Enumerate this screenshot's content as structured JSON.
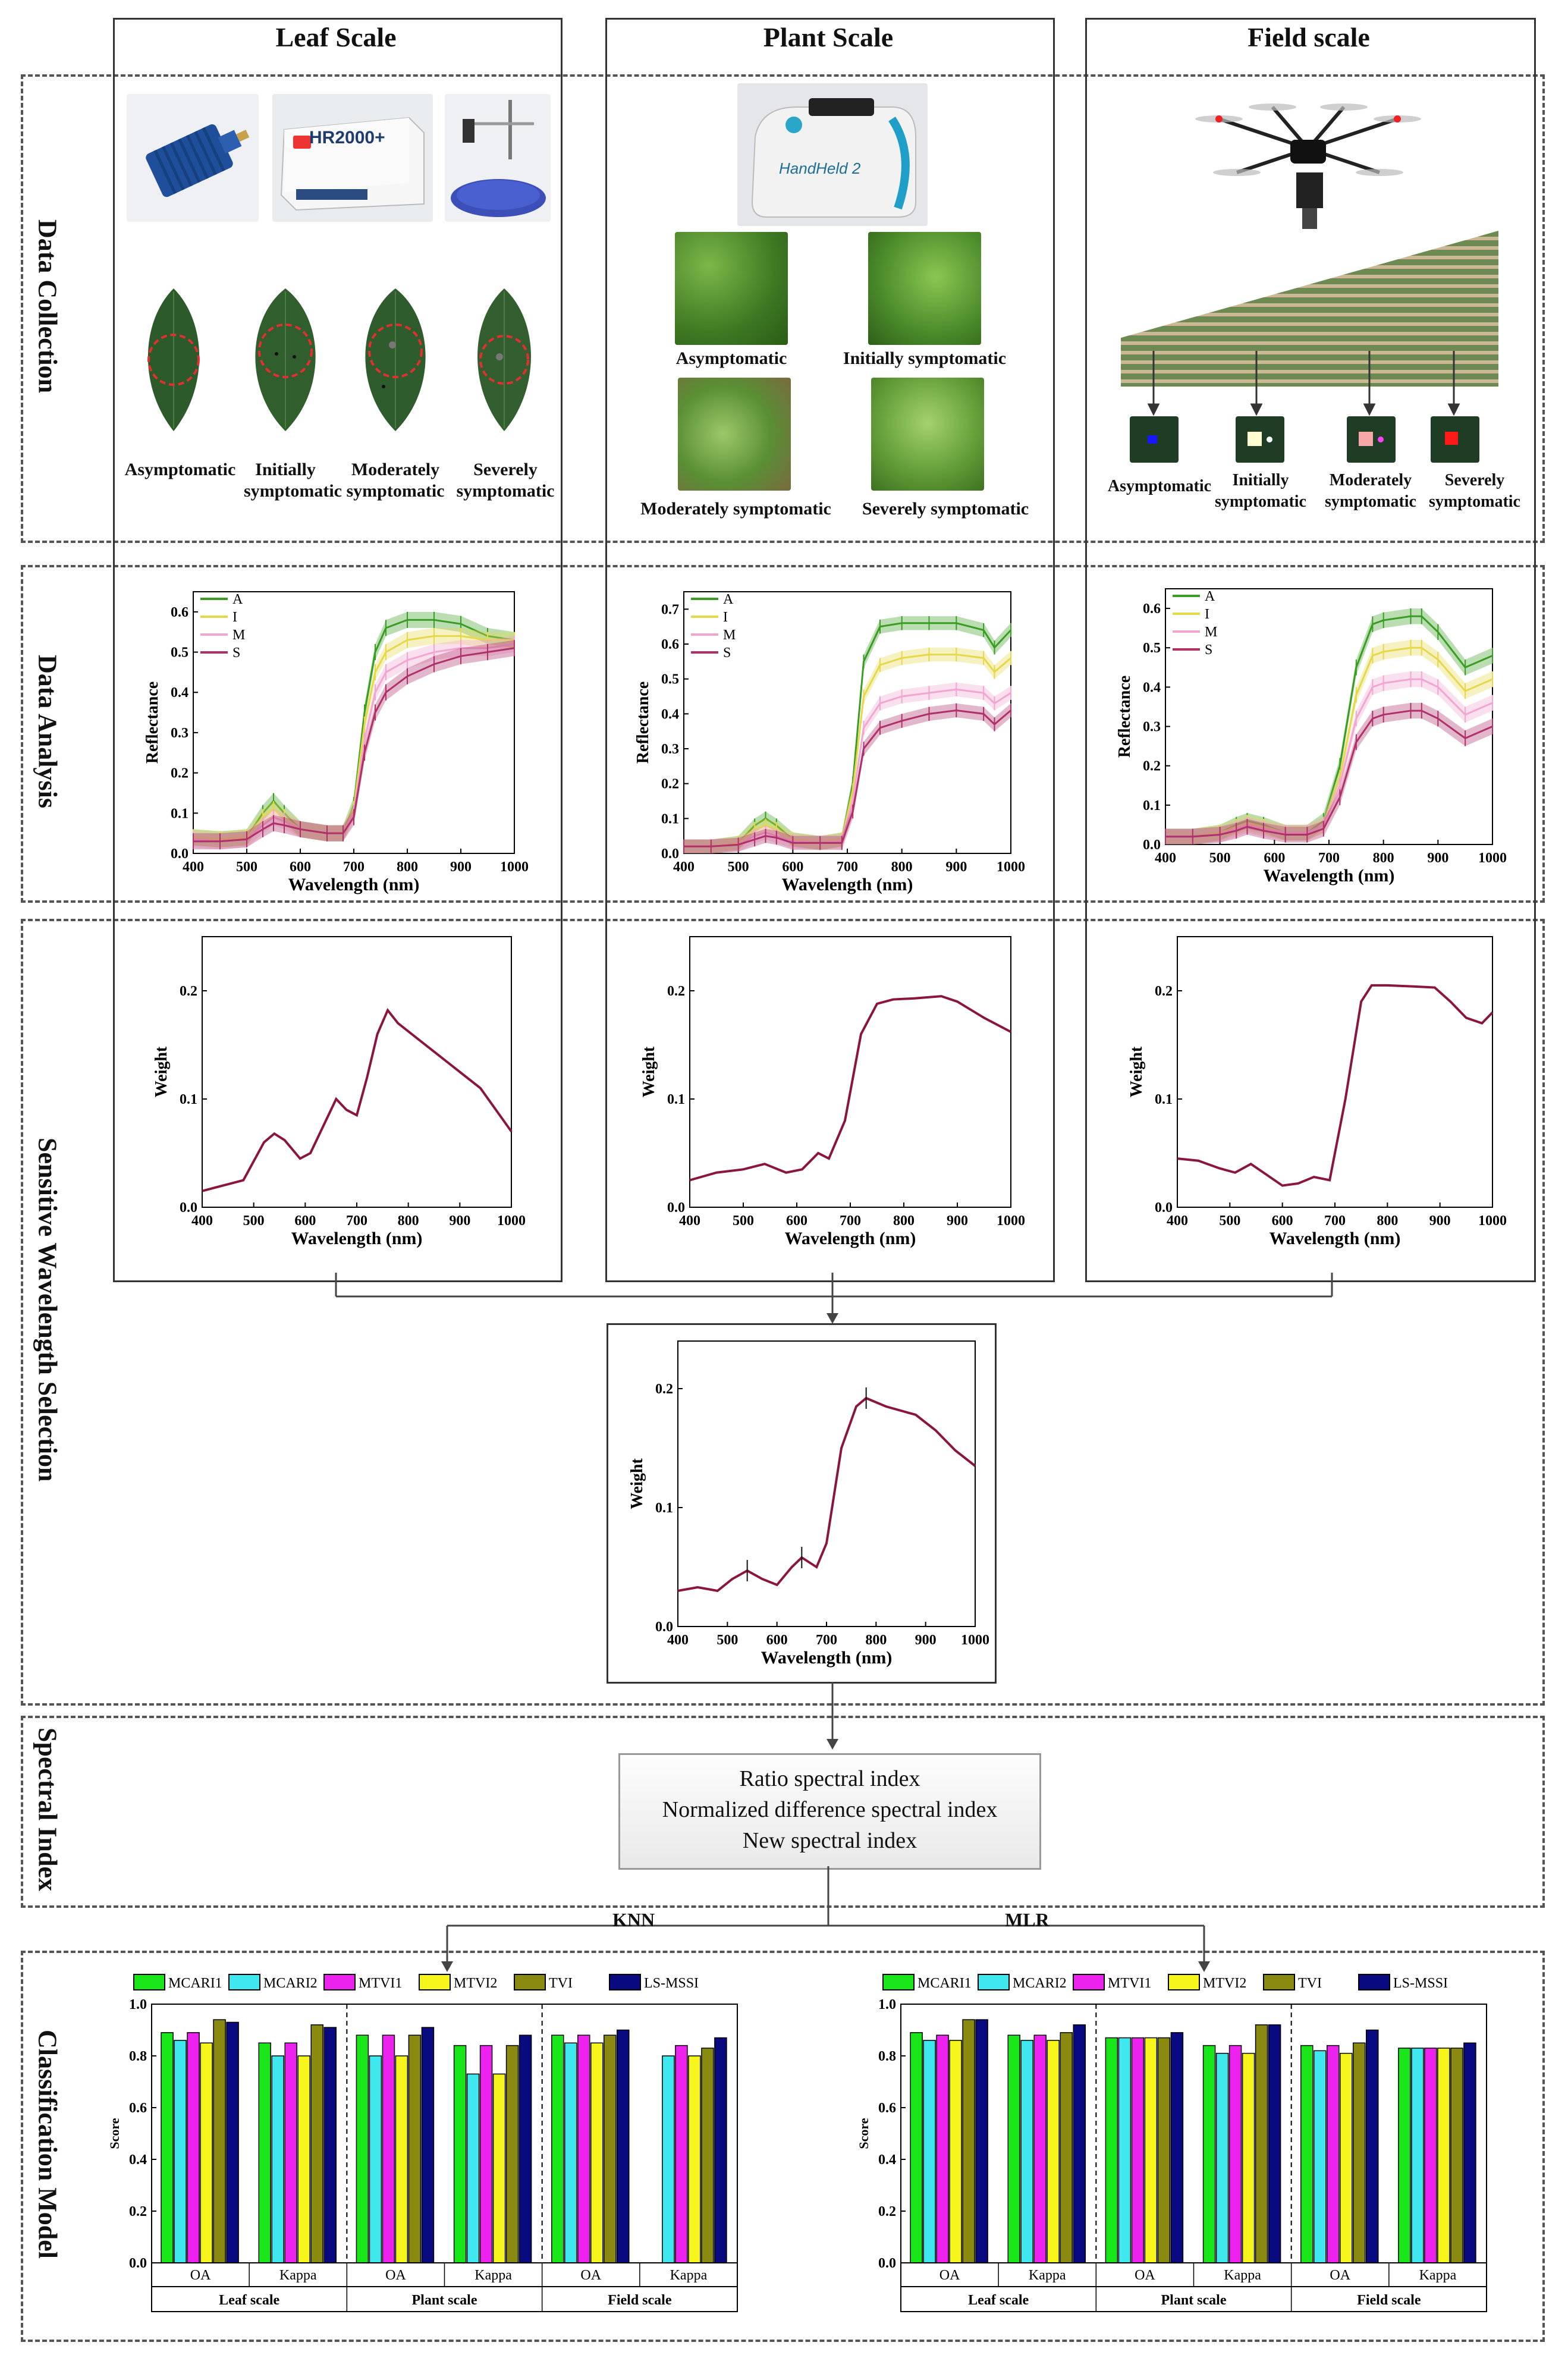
{
  "columns": {
    "leaf": "Leaf Scale",
    "plant": "Plant Scale",
    "field": "Field scale"
  },
  "stages": {
    "data_collection": "Data Collection",
    "data_analysis": "Data Analysis",
    "sensitive_wavelength": "Sensitive Wavelength Selection",
    "spectral_index": "Spectral Index",
    "classification_model": "Classification Model"
  },
  "device_labels": {
    "hr2000": "HR2000+",
    "handheld": "HandHeld 2"
  },
  "leaf_captions": [
    "Asymptomatic",
    "Initially symptomatic",
    "Moderately symptomatic",
    "Severely symptomatic"
  ],
  "plant_captions": [
    "Asymptomatic",
    "Initially symptomatic",
    "Moderately symptomatic",
    "Severely symptomatic"
  ],
  "field_captions": [
    "Asymptomatic",
    "Initially symptomatic",
    "Moderately symptomatic",
    "Severely symptomatic"
  ],
  "reflectance_charts": [
    {
      "type": "line",
      "scale": "Leaf",
      "xlabel": "Wavelength (nm)",
      "ylabel": "Reflectance",
      "xlim": [
        400,
        1000
      ],
      "ylim": [
        0,
        0.65
      ],
      "xticks": [
        "400",
        "500",
        "600",
        "700",
        "800",
        "900",
        "1000"
      ],
      "yticks": [
        "0.0",
        "0.1",
        "0.2",
        "0.3",
        "0.4",
        "0.5",
        "0.6"
      ],
      "legend": [
        "A",
        "I",
        "M",
        "S"
      ],
      "series": [
        {
          "name": "A",
          "color": "#3a9d23",
          "x": [
            400,
            450,
            500,
            530,
            550,
            570,
            600,
            650,
            680,
            700,
            720,
            740,
            760,
            800,
            850,
            900,
            950,
            1000
          ],
          "y": [
            0.04,
            0.035,
            0.04,
            0.1,
            0.13,
            0.1,
            0.06,
            0.05,
            0.05,
            0.12,
            0.35,
            0.5,
            0.56,
            0.58,
            0.58,
            0.57,
            0.54,
            0.53
          ]
        },
        {
          "name": "I",
          "color": "#e5d84a",
          "x": [
            400,
            450,
            500,
            530,
            550,
            570,
            600,
            650,
            680,
            700,
            720,
            740,
            760,
            800,
            850,
            900,
            950,
            1000
          ],
          "y": [
            0.04,
            0.035,
            0.04,
            0.09,
            0.11,
            0.09,
            0.06,
            0.05,
            0.05,
            0.11,
            0.32,
            0.45,
            0.5,
            0.53,
            0.54,
            0.54,
            0.53,
            0.53
          ]
        },
        {
          "name": "M",
          "color": "#f2a6cf",
          "x": [
            400,
            450,
            500,
            530,
            550,
            570,
            600,
            650,
            680,
            700,
            720,
            740,
            760,
            800,
            850,
            900,
            950,
            1000
          ],
          "y": [
            0.035,
            0.03,
            0.035,
            0.07,
            0.09,
            0.08,
            0.06,
            0.05,
            0.05,
            0.1,
            0.28,
            0.4,
            0.45,
            0.48,
            0.5,
            0.51,
            0.51,
            0.52
          ]
        },
        {
          "name": "S",
          "color": "#b0306a",
          "x": [
            400,
            450,
            500,
            530,
            550,
            570,
            600,
            650,
            680,
            700,
            720,
            740,
            760,
            800,
            850,
            900,
            950,
            1000
          ],
          "y": [
            0.03,
            0.03,
            0.035,
            0.06,
            0.075,
            0.07,
            0.06,
            0.05,
            0.05,
            0.09,
            0.25,
            0.35,
            0.4,
            0.44,
            0.47,
            0.49,
            0.5,
            0.51
          ]
        }
      ]
    },
    {
      "type": "line",
      "scale": "Plant",
      "xlabel": "Wavelength (nm)",
      "ylabel": "Reflectance",
      "xlim": [
        400,
        1000
      ],
      "ylim": [
        0,
        0.75
      ],
      "xticks": [
        "400",
        "500",
        "600",
        "700",
        "800",
        "900",
        "1000"
      ],
      "yticks": [
        "0.0",
        "0.1",
        "0.2",
        "0.3",
        "0.4",
        "0.5",
        "0.6",
        "0.7"
      ],
      "legend": [
        "A",
        "I",
        "M",
        "S"
      ],
      "series": [
        {
          "name": "A",
          "color": "#3a9d23",
          "x": [
            400,
            450,
            500,
            530,
            550,
            570,
            600,
            650,
            690,
            710,
            730,
            760,
            800,
            850,
            900,
            950,
            970,
            1000
          ],
          "y": [
            0.02,
            0.02,
            0.03,
            0.08,
            0.1,
            0.08,
            0.04,
            0.03,
            0.04,
            0.2,
            0.55,
            0.65,
            0.66,
            0.66,
            0.66,
            0.64,
            0.59,
            0.64
          ]
        },
        {
          "name": "I",
          "color": "#e5d84a",
          "x": [
            400,
            450,
            500,
            530,
            550,
            570,
            600,
            650,
            690,
            710,
            730,
            760,
            800,
            850,
            900,
            950,
            970,
            1000
          ],
          "y": [
            0.02,
            0.02,
            0.03,
            0.07,
            0.08,
            0.07,
            0.04,
            0.03,
            0.04,
            0.18,
            0.45,
            0.54,
            0.56,
            0.57,
            0.57,
            0.56,
            0.52,
            0.56
          ]
        },
        {
          "name": "M",
          "color": "#f2a6cf",
          "x": [
            400,
            450,
            500,
            530,
            550,
            570,
            600,
            650,
            690,
            710,
            730,
            760,
            800,
            850,
            900,
            950,
            970,
            1000
          ],
          "y": [
            0.02,
            0.02,
            0.025,
            0.05,
            0.06,
            0.05,
            0.035,
            0.03,
            0.035,
            0.15,
            0.36,
            0.43,
            0.45,
            0.46,
            0.47,
            0.46,
            0.43,
            0.46
          ]
        },
        {
          "name": "S",
          "color": "#b0306a",
          "x": [
            400,
            450,
            500,
            530,
            550,
            570,
            600,
            650,
            690,
            710,
            730,
            760,
            800,
            850,
            900,
            950,
            970,
            1000
          ],
          "y": [
            0.02,
            0.02,
            0.025,
            0.04,
            0.05,
            0.045,
            0.03,
            0.03,
            0.03,
            0.12,
            0.3,
            0.36,
            0.38,
            0.4,
            0.41,
            0.4,
            0.37,
            0.41
          ]
        }
      ]
    },
    {
      "type": "line",
      "scale": "Field",
      "xlabel": "Wavelength (nm)",
      "ylabel": "Reflectance",
      "xlim": [
        400,
        1000
      ],
      "ylim": [
        0,
        0.65
      ],
      "xticks": [
        "400",
        "500",
        "600",
        "700",
        "800",
        "900",
        "1000"
      ],
      "yticks": [
        "0.0",
        "0.1",
        "0.2",
        "0.3",
        "0.4",
        "0.5",
        "0.6"
      ],
      "legend": [
        "A",
        "I",
        "M",
        "S"
      ],
      "series": [
        {
          "name": "A",
          "color": "#3a9d23",
          "x": [
            400,
            450,
            500,
            530,
            550,
            580,
            620,
            660,
            690,
            720,
            750,
            780,
            800,
            850,
            870,
            900,
            950,
            1000
          ],
          "y": [
            0.02,
            0.02,
            0.03,
            0.05,
            0.06,
            0.05,
            0.03,
            0.03,
            0.06,
            0.2,
            0.45,
            0.56,
            0.57,
            0.58,
            0.58,
            0.54,
            0.45,
            0.48
          ]
        },
        {
          "name": "I",
          "color": "#e5d84a",
          "x": [
            400,
            450,
            500,
            530,
            550,
            580,
            620,
            660,
            690,
            720,
            750,
            780,
            800,
            850,
            870,
            900,
            950,
            1000
          ],
          "y": [
            0.02,
            0.02,
            0.03,
            0.045,
            0.055,
            0.045,
            0.03,
            0.03,
            0.05,
            0.17,
            0.38,
            0.48,
            0.49,
            0.5,
            0.5,
            0.47,
            0.39,
            0.42
          ]
        },
        {
          "name": "M",
          "color": "#f2a6cf",
          "x": [
            400,
            450,
            500,
            530,
            550,
            580,
            620,
            660,
            690,
            720,
            750,
            780,
            800,
            850,
            870,
            900,
            950,
            1000
          ],
          "y": [
            0.02,
            0.02,
            0.025,
            0.04,
            0.05,
            0.04,
            0.03,
            0.03,
            0.05,
            0.15,
            0.32,
            0.4,
            0.41,
            0.42,
            0.42,
            0.4,
            0.33,
            0.36
          ]
        },
        {
          "name": "S",
          "color": "#b0306a",
          "x": [
            400,
            450,
            500,
            530,
            550,
            580,
            620,
            660,
            690,
            720,
            750,
            780,
            800,
            850,
            870,
            900,
            950,
            1000
          ],
          "y": [
            0.02,
            0.02,
            0.025,
            0.035,
            0.045,
            0.035,
            0.025,
            0.025,
            0.04,
            0.12,
            0.26,
            0.32,
            0.33,
            0.34,
            0.34,
            0.32,
            0.27,
            0.3
          ]
        }
      ]
    }
  ],
  "weight_charts": [
    {
      "type": "line",
      "scale": "Leaf",
      "xlabel": "Wavelength (nm)",
      "ylabel": "Weight",
      "xlim": [
        400,
        1000
      ],
      "ylim": [
        0,
        0.25
      ],
      "xticks": [
        "400",
        "500",
        "600",
        "700",
        "800",
        "900",
        "1000"
      ],
      "yticks": [
        "0.0",
        "0.1",
        "0.2"
      ],
      "x": [
        400,
        440,
        480,
        520,
        540,
        560,
        590,
        610,
        640,
        660,
        680,
        700,
        720,
        740,
        760,
        780,
        820,
        860,
        900,
        940,
        1000
      ],
      "y": [
        0.015,
        0.02,
        0.025,
        0.06,
        0.068,
        0.062,
        0.045,
        0.05,
        0.08,
        0.1,
        0.09,
        0.085,
        0.12,
        0.16,
        0.182,
        0.17,
        0.155,
        0.14,
        0.125,
        0.11,
        0.07
      ]
    },
    {
      "type": "line",
      "scale": "Plant",
      "xlabel": "Wavelength (nm)",
      "ylabel": "Weight",
      "xlim": [
        400,
        1000
      ],
      "ylim": [
        0,
        0.25
      ],
      "xticks": [
        "400",
        "500",
        "600",
        "700",
        "800",
        "900",
        "1000"
      ],
      "yticks": [
        "0.0",
        "0.1",
        "0.2"
      ],
      "x": [
        400,
        450,
        500,
        540,
        580,
        610,
        640,
        660,
        690,
        720,
        750,
        780,
        820,
        870,
        900,
        950,
        1000
      ],
      "y": [
        0.025,
        0.032,
        0.035,
        0.04,
        0.032,
        0.035,
        0.05,
        0.045,
        0.08,
        0.16,
        0.188,
        0.192,
        0.193,
        0.195,
        0.19,
        0.175,
        0.162
      ]
    },
    {
      "type": "line",
      "scale": "Field",
      "xlabel": "Wavelength (nm)",
      "ylabel": "Weight",
      "xlim": [
        400,
        1000
      ],
      "ylim": [
        0,
        0.25
      ],
      "xticks": [
        "400",
        "500",
        "600",
        "700",
        "800",
        "900",
        "1000"
      ],
      "yticks": [
        "0.0",
        "0.1",
        "0.2"
      ],
      "x": [
        400,
        440,
        480,
        510,
        540,
        570,
        600,
        630,
        660,
        690,
        720,
        750,
        770,
        800,
        850,
        890,
        920,
        950,
        980,
        1000
      ],
      "y": [
        0.045,
        0.043,
        0.036,
        0.032,
        0.04,
        0.03,
        0.02,
        0.022,
        0.028,
        0.025,
        0.1,
        0.19,
        0.205,
        0.205,
        0.204,
        0.203,
        0.19,
        0.175,
        0.17,
        0.18
      ]
    },
    {
      "type": "line",
      "scale": "Combined",
      "xlabel": "Wavelength (nm)",
      "ylabel": "Weight",
      "xlim": [
        400,
        1000
      ],
      "ylim": [
        0,
        0.24
      ],
      "xticks": [
        "400",
        "500",
        "600",
        "700",
        "800",
        "900",
        "1000"
      ],
      "yticks": [
        "0.0",
        "0.1",
        "0.2"
      ],
      "x": [
        400,
        440,
        480,
        510,
        540,
        570,
        600,
        630,
        650,
        680,
        700,
        730,
        760,
        780,
        820,
        880,
        920,
        960,
        1000
      ],
      "y": [
        0.03,
        0.033,
        0.03,
        0.04,
        0.047,
        0.04,
        0.035,
        0.05,
        0.058,
        0.05,
        0.07,
        0.15,
        0.185,
        0.192,
        0.185,
        0.178,
        0.165,
        0.148,
        0.135
      ]
    }
  ],
  "spectral_index": {
    "line1": "Ratio spectral index",
    "line2": "Normalized difference spectral index",
    "line3": "New spectral index"
  },
  "model_labels": {
    "knn": "KNN",
    "mlr": "MLR"
  },
  "chart_data": [
    {
      "type": "bar",
      "title": "KNN",
      "ylabel": "Score",
      "ylim": [
        0,
        1.0
      ],
      "yticks": [
        "0.0",
        "0.2",
        "0.4",
        "0.6",
        "0.8",
        "1.0"
      ],
      "groups": [
        "Leaf scale",
        "Plant scale",
        "Field scale"
      ],
      "categories": [
        "OA",
        "Kappa",
        "OA",
        "Kappa",
        "OA",
        "Kappa"
      ],
      "series": [
        {
          "name": "MCARI1",
          "color": "#19e619",
          "values": [
            0.89,
            0.85,
            0.88,
            0.84,
            0.88,
            0.0
          ]
        },
        {
          "name": "MCARI2",
          "color": "#3fe7ee",
          "values": [
            0.86,
            0.8,
            0.8,
            0.73,
            0.85,
            0.8
          ]
        },
        {
          "name": "MTVI1",
          "color": "#ee22ee",
          "values": [
            0.89,
            0.85,
            0.88,
            0.84,
            0.88,
            0.84
          ]
        },
        {
          "name": "MTVI2",
          "color": "#f5f51c",
          "values": [
            0.85,
            0.8,
            0.8,
            0.73,
            0.85,
            0.8
          ]
        },
        {
          "name": "TVI",
          "color": "#8a8a10",
          "values": [
            0.94,
            0.92,
            0.88,
            0.84,
            0.88,
            0.83
          ]
        },
        {
          "name": "LS-MSSI",
          "color": "#0a0a80",
          "values": [
            0.93,
            0.91,
            0.91,
            0.88,
            0.9,
            0.87
          ]
        }
      ]
    },
    {
      "type": "bar",
      "title": "MLR",
      "ylabel": "Score",
      "ylim": [
        0,
        1.0
      ],
      "yticks": [
        "0.0",
        "0.2",
        "0.4",
        "0.6",
        "0.8",
        "1.0"
      ],
      "groups": [
        "Leaf scale",
        "Plant scale",
        "Field scale"
      ],
      "categories": [
        "OA",
        "Kappa",
        "OA",
        "Kappa",
        "OA",
        "Kappa"
      ],
      "series": [
        {
          "name": "MCARI1",
          "color": "#19e619",
          "values": [
            0.89,
            0.88,
            0.87,
            0.84,
            0.84,
            0.83
          ]
        },
        {
          "name": "MCARI2",
          "color": "#3fe7ee",
          "values": [
            0.86,
            0.86,
            0.87,
            0.81,
            0.82,
            0.83
          ]
        },
        {
          "name": "MTVI1",
          "color": "#ee22ee",
          "values": [
            0.88,
            0.88,
            0.87,
            0.84,
            0.84,
            0.83
          ]
        },
        {
          "name": "MTVI2",
          "color": "#f5f51c",
          "values": [
            0.86,
            0.86,
            0.87,
            0.81,
            0.81,
            0.83
          ]
        },
        {
          "name": "TVI",
          "color": "#8a8a10",
          "values": [
            0.94,
            0.89,
            0.87,
            0.92,
            0.85,
            0.83
          ]
        },
        {
          "name": "LS-MSSI",
          "color": "#0a0a80",
          "values": [
            0.94,
            0.92,
            0.89,
            0.92,
            0.9,
            0.85
          ]
        }
      ]
    }
  ]
}
